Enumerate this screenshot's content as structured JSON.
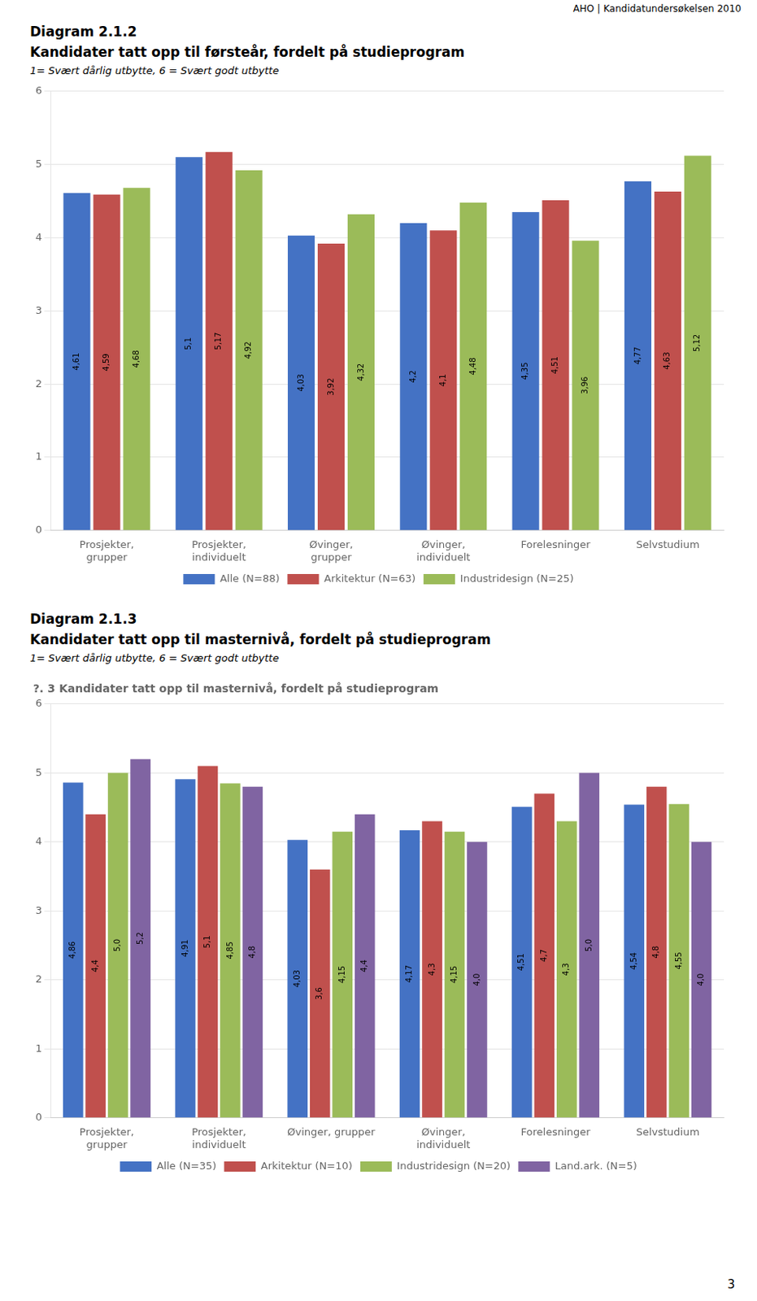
{
  "annotations": [
    "AHO | Kandidatundersøkelsen 2010",
    "3"
  ],
  "chart_data": [
    {
      "type": "bar",
      "annotations": [
        "Diagram 2.1.2"
      ],
      "title": "Kandidater tatt opp til førsteår, fordelt på studieprogram",
      "subtitle": "1= Svært dårlig utbytte, 6 = Svært godt utbytte",
      "categories": [
        "Prosjekter,\ngrupper",
        "Prosjekter,\nindividuelt",
        "Øvinger,\ngrupper",
        "Øvinger,\nindividuelt",
        "Forelesninger",
        "Selvstudium"
      ],
      "series": [
        {
          "name": "Alle (N=88)",
          "color": "#4472C4",
          "values": [
            4.61,
            5.1,
            4.03,
            4.2,
            4.35,
            4.77
          ],
          "value_labels": [
            "4,61",
            "5,1",
            "4,03",
            "4,2",
            "4,35",
            "4,77"
          ]
        },
        {
          "name": "Arkitektur (N=63)",
          "color": "#C0504D",
          "values": [
            4.59,
            5.17,
            3.92,
            4.1,
            4.51,
            4.63
          ],
          "value_labels": [
            "4,59",
            "5,17",
            "3,92",
            "4,1",
            "4,51",
            "4,63"
          ]
        },
        {
          "name": "Industridesign (N=25)",
          "color": "#9BBB59",
          "values": [
            4.68,
            4.92,
            4.32,
            4.48,
            3.96,
            5.12
          ],
          "value_labels": [
            "4,68",
            "4,92",
            "4,32",
            "4,48",
            "3,96",
            "5,12"
          ]
        }
      ],
      "ylim": [
        0,
        6
      ],
      "yticks": [
        0,
        1,
        2,
        3,
        4,
        5,
        6
      ],
      "grid": true,
      "legend": "bottom",
      "data_labels": true
    },
    {
      "type": "bar",
      "annotations": [
        "Diagram 2.1.3",
        "?. 3 Kandidater tatt opp til masternivå, fordelt på studieprogram"
      ],
      "title": "Kandidater tatt opp til masternivå, fordelt på studieprogram",
      "subtitle": "1= Svært dårlig utbytte, 6 = Svært godt utbytte",
      "categories": [
        "Prosjekter,\ngrupper",
        "Prosjekter,\nindividuelt",
        "Øvinger, grupper",
        "Øvinger,\nindividuelt",
        "Forelesninger",
        "Selvstudium"
      ],
      "series": [
        {
          "name": "Alle (N=35)",
          "color": "#4472C4",
          "values": [
            4.86,
            4.91,
            4.03,
            4.17,
            4.51,
            4.54
          ],
          "value_labels": [
            "4,86",
            "4,91",
            "4,03",
            "4,17",
            "4,51",
            "4,54"
          ]
        },
        {
          "name": "Arkitektur (N=10)",
          "color": "#C0504D",
          "values": [
            4.4,
            5.1,
            3.6,
            4.3,
            4.7,
            4.8
          ],
          "value_labels": [
            "4,4",
            "5,1",
            "3,6",
            "4,3",
            "4,7",
            "4,8"
          ]
        },
        {
          "name": "Industridesign (N=20)",
          "color": "#9BBB59",
          "values": [
            5.0,
            4.85,
            4.15,
            4.15,
            4.3,
            4.55
          ],
          "value_labels": [
            "5,0",
            "4,85",
            "4,15",
            "4,15",
            "4,3",
            "4,55"
          ]
        },
        {
          "name": "Land.ark. (N=5)",
          "color": "#8064A2",
          "values": [
            5.2,
            4.8,
            4.4,
            4.0,
            5.0,
            4.0
          ],
          "value_labels": [
            "5,2",
            "4,8",
            "4,4",
            "4,0",
            "5,0",
            "4,0"
          ]
        }
      ],
      "ylim": [
        0,
        6
      ],
      "yticks": [
        0,
        1,
        2,
        3,
        4,
        5,
        6
      ],
      "grid": true,
      "legend": "bottom",
      "data_labels": true
    }
  ]
}
